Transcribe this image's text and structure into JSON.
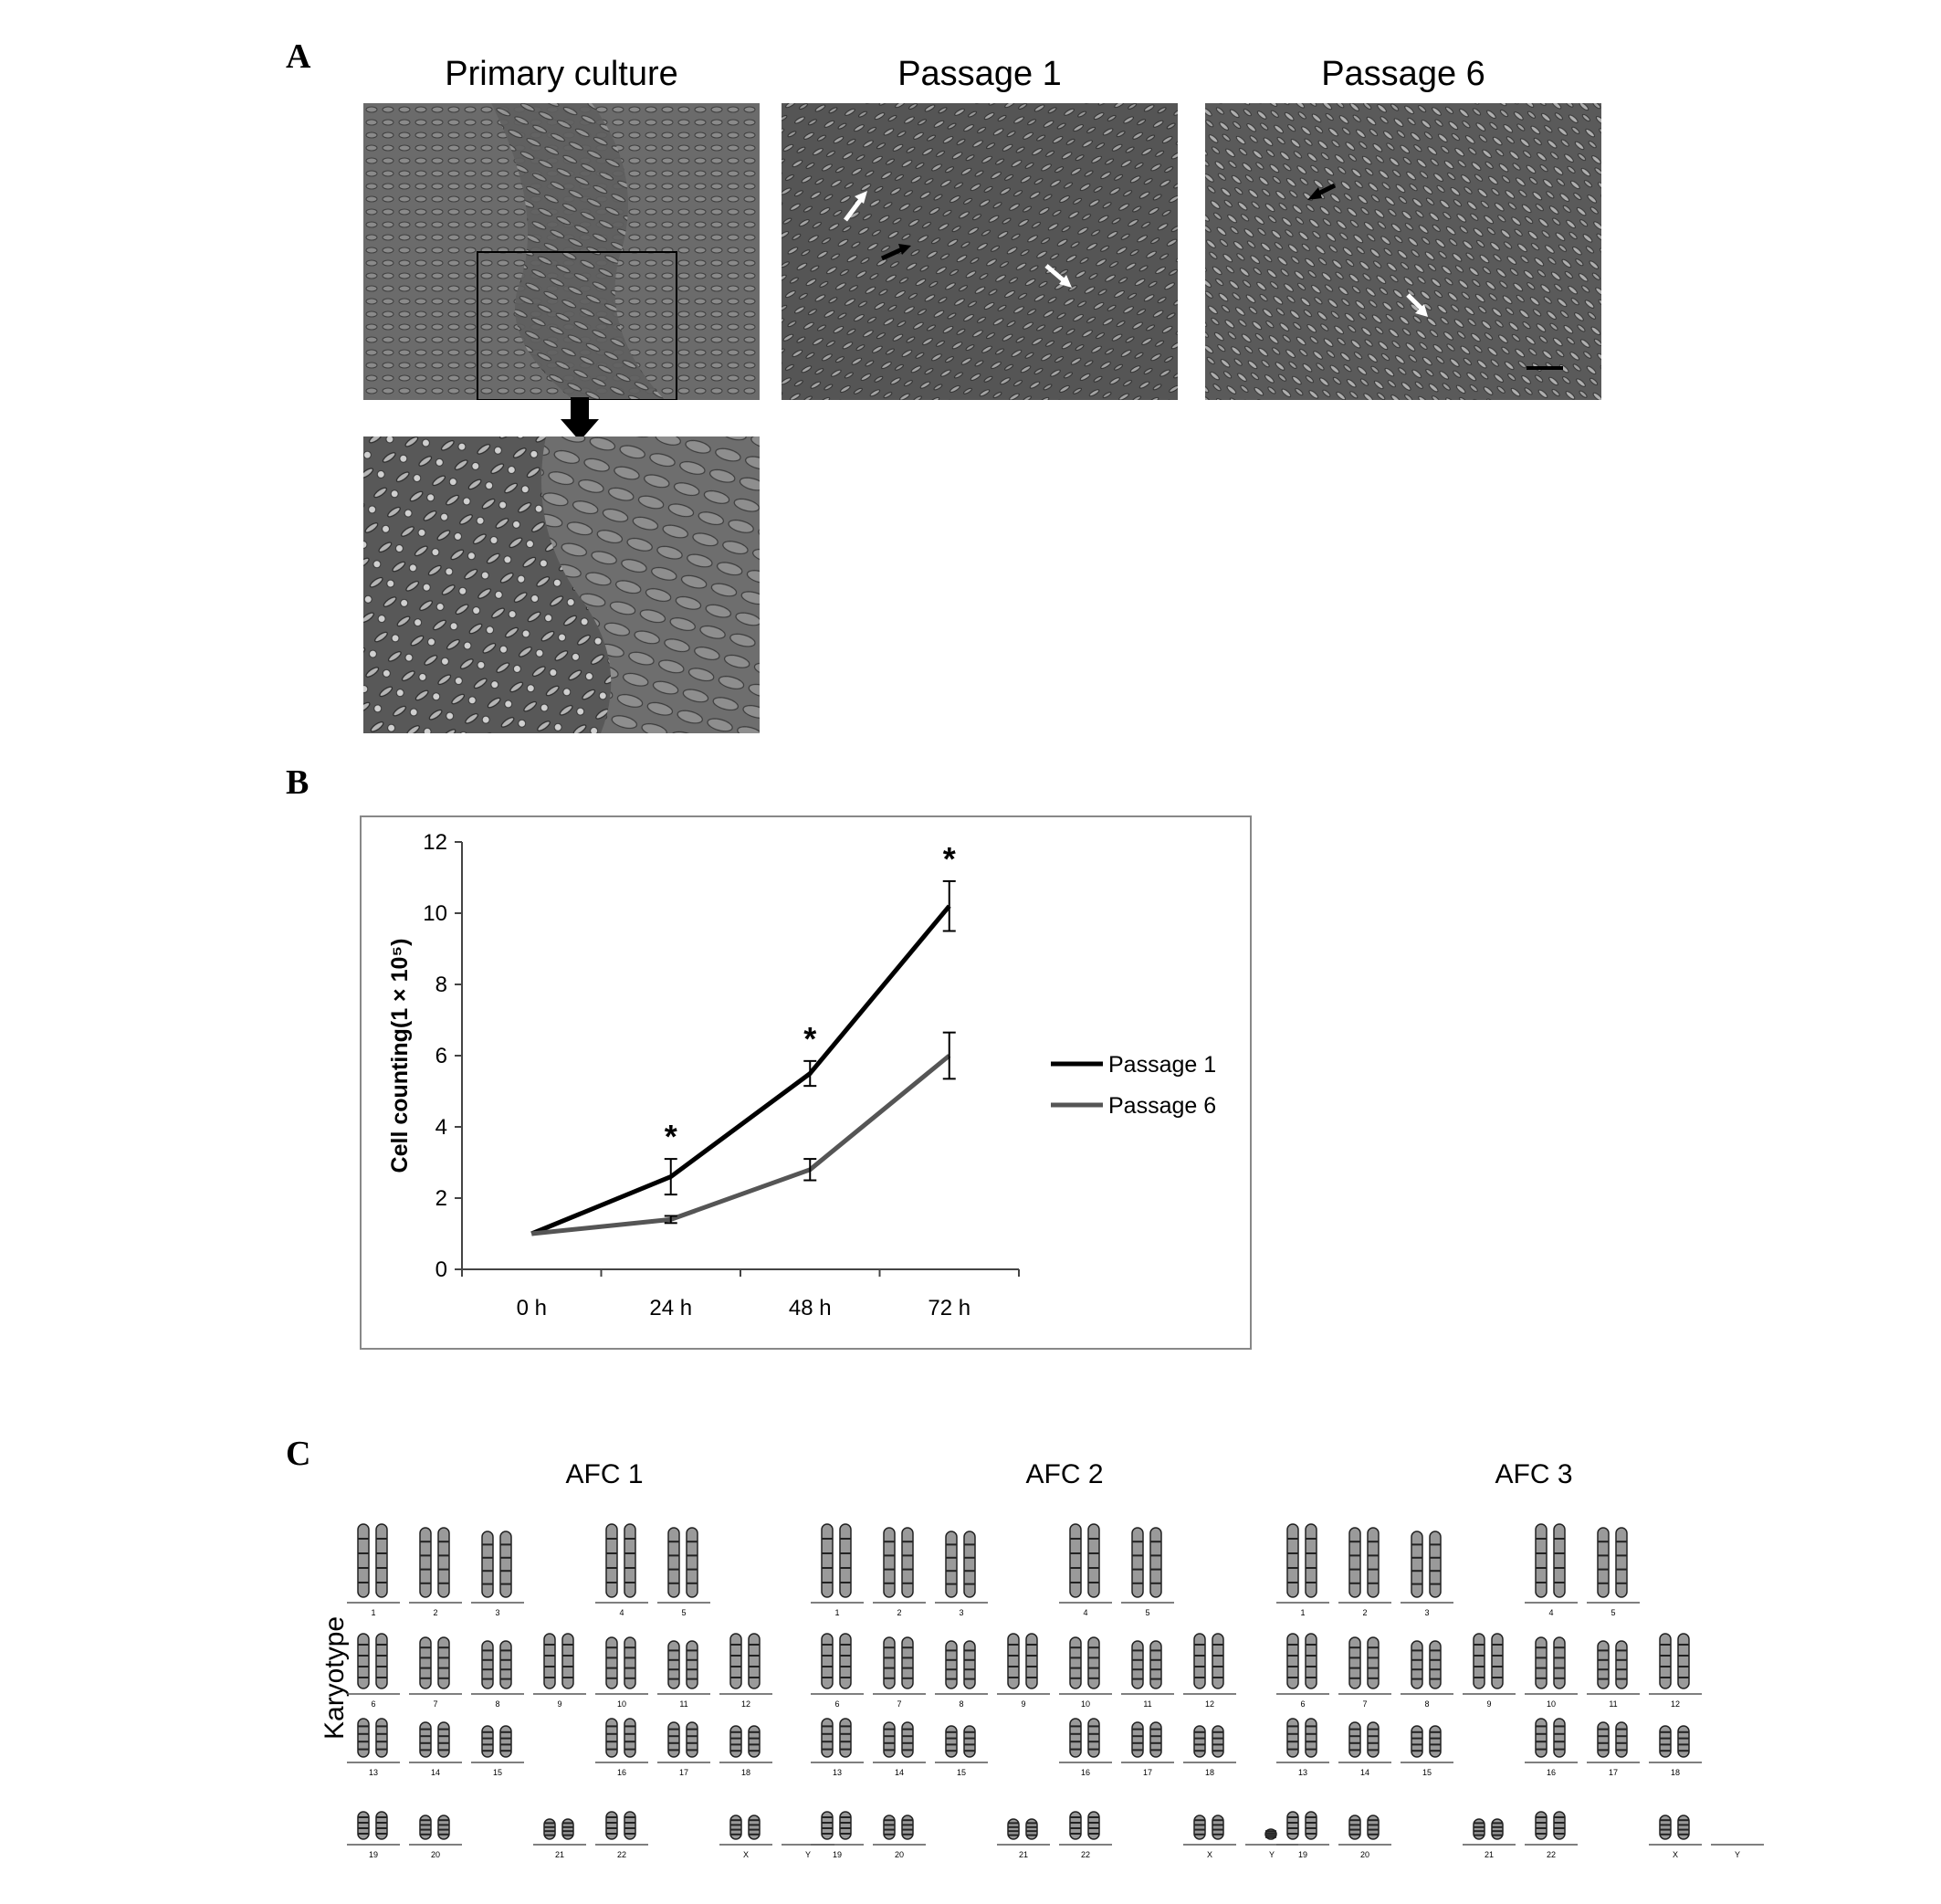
{
  "panels": {
    "a": {
      "letter": "A",
      "titles": [
        "Primary culture",
        "Passage 1",
        "Passage 6"
      ]
    },
    "b": {
      "letter": "B"
    },
    "c": {
      "letter": "C",
      "titles": [
        "AFC 1",
        "AFC 2",
        "AFC 3"
      ],
      "ylabel": "Karyotype",
      "chromosome_labels": [
        "1",
        "2",
        "3",
        "4",
        "5",
        "6",
        "7",
        "8",
        "9",
        "10",
        "11",
        "12",
        "13",
        "14",
        "15",
        "16",
        "17",
        "18",
        "19",
        "20",
        "21",
        "22",
        "X",
        "Y"
      ]
    }
  },
  "chart_data": {
    "type": "line",
    "categories": [
      "0 h",
      "24 h",
      "48 h",
      "72 h"
    ],
    "series": [
      {
        "name": "Passage 1",
        "values": [
          1.0,
          2.6,
          5.5,
          10.2
        ],
        "errors": [
          0.0,
          0.5,
          0.35,
          0.7
        ],
        "color": "#000000"
      },
      {
        "name": "Passage 6",
        "values": [
          1.0,
          1.4,
          2.8,
          6.0
        ],
        "errors": [
          0.0,
          0.1,
          0.3,
          0.65
        ],
        "color": "#555555"
      }
    ],
    "significance": [
      "",
      "*",
      "*",
      "*"
    ],
    "ylabel": "Cell counting(1 × 10⁵)",
    "ylim": [
      0,
      12
    ],
    "yticks": [
      "0",
      "2",
      "4",
      "6",
      "8",
      "10",
      "12"
    ],
    "legend_position": "right",
    "grid": false
  }
}
